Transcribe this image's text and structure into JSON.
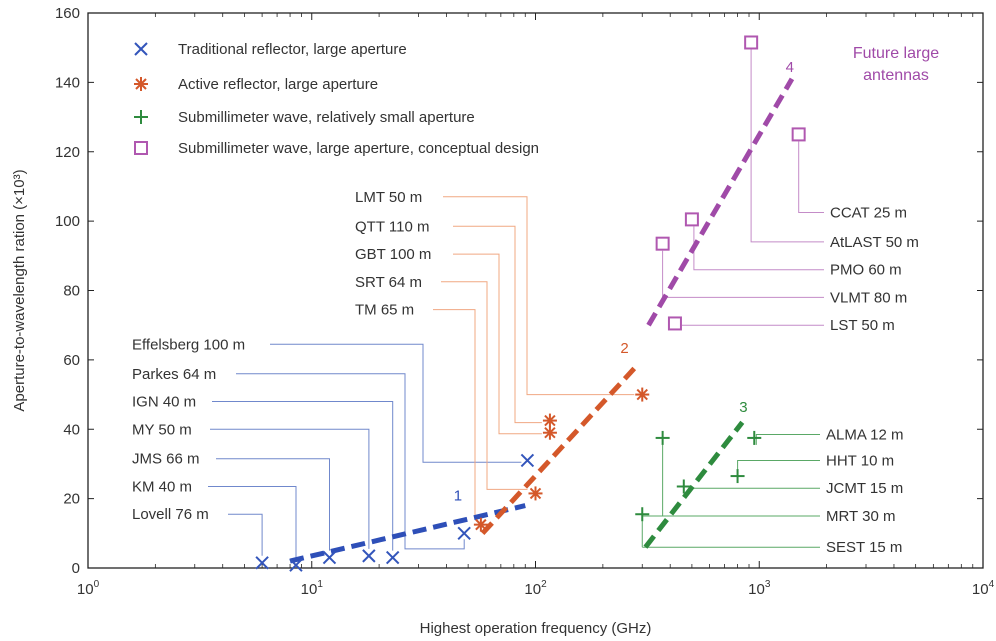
{
  "chart_data": {
    "type": "scatter",
    "xlabel": "Highest operation frequency (GHz)",
    "ylabel": "Aperture-to-wavelength ration (×10³)",
    "xscale": "log",
    "xlim": [
      1,
      10000
    ],
    "ylim": [
      0,
      160
    ],
    "grid": false,
    "legend_position": "top-left",
    "x_ticks": [
      {
        "value": 1,
        "base": "10",
        "exp": "0"
      },
      {
        "value": 10,
        "base": "10",
        "exp": "1"
      },
      {
        "value": 100,
        "base": "10",
        "exp": "2"
      },
      {
        "value": 1000,
        "base": "10",
        "exp": "3"
      },
      {
        "value": 10000,
        "base": "10",
        "exp": "4"
      }
    ],
    "y_ticks": [
      0,
      20,
      40,
      60,
      80,
      100,
      120,
      140,
      160
    ],
    "series": [
      {
        "name": "Traditional reflector, large aperture",
        "marker": "x",
        "color": "#3355bb",
        "points": [
          {
            "label": "Lovell 76 m",
            "x": 6,
            "y": 1.5,
            "label_y": 15.5
          },
          {
            "label": "KM 40 m",
            "x": 8.5,
            "y": 0.8,
            "label_y": 23.5
          },
          {
            "label": "JMS 66 m",
            "x": 12,
            "y": 3,
            "label_y": 31.5
          },
          {
            "label": "MY 50 m",
            "x": 18,
            "y": 3.5,
            "label_y": 40
          },
          {
            "label": "IGN 40 m",
            "x": 23,
            "y": 3,
            "label_y": 48
          },
          {
            "label": "Parkes 64 m",
            "x": 48,
            "y": 10,
            "label_y": 56
          },
          {
            "label": "Effelsberg 100 m",
            "x": 92,
            "y": 31,
            "label_y": 64.5
          }
        ]
      },
      {
        "name": "Active reflector, large aperture",
        "marker": "asterisk",
        "color": "#d4582a",
        "points": [
          {
            "label": "TM 65 m",
            "x": 57,
            "y": 12.5,
            "label_y": 74.5
          },
          {
            "label": "SRT 64 m",
            "x": 100,
            "y": 21.5,
            "label_y": 82.5
          },
          {
            "label": "GBT 100 m",
            "x": 116,
            "y": 39,
            "label_y": 90.5
          },
          {
            "label": "QTT 110 m",
            "x": 116,
            "y": 42.5,
            "label_y": 98.5
          },
          {
            "label": "LMT 50 m",
            "x": 300,
            "y": 50,
            "label_y": 107
          }
        ]
      },
      {
        "name": "Submillimeter wave, relatively small aperture",
        "marker": "plus",
        "color": "#2e8b3e",
        "points": [
          {
            "label": "ALMA 12 m",
            "x": 950,
            "y": 37.5,
            "label_y": 38.5
          },
          {
            "label": "HHT 10 m",
            "x": 800,
            "y": 26.5,
            "label_y": 31
          },
          {
            "label": "JCMT 15 m",
            "x": 460,
            "y": 23.5,
            "label_y": 23
          },
          {
            "label": "MRT 30 m",
            "x": 300,
            "y": 15.5,
            "label_y": 15
          },
          {
            "label": "SEST 15 m",
            "x": 370,
            "y": 37.5,
            "label_y": 6
          }
        ]
      },
      {
        "name": "Submillimeter wave, large aperture, conceptual design",
        "marker": "square",
        "color": "#b058b0",
        "points": [
          {
            "label": "CCAT 25 m",
            "x": 1500,
            "y": 125,
            "label_y": 102.5
          },
          {
            "label": "AtLAST 50 m",
            "x": 920,
            "y": 151.5,
            "label_y": 94
          },
          {
            "label": "PMO 60 m",
            "x": 500,
            "y": 100.5,
            "label_y": 86
          },
          {
            "label": "VLMT 80 m",
            "x": 370,
            "y": 93.5,
            "label_y": 78
          },
          {
            "label": "LST 50 m",
            "x": 420,
            "y": 70.5,
            "label_y": 70
          }
        ]
      }
    ],
    "trend_lines": [
      {
        "label": "1",
        "color": "#2e4fb8",
        "x": [
          8,
          90
        ],
        "y": [
          2,
          18
        ],
        "label_x": 45,
        "label_y": 19.5
      },
      {
        "label": "2",
        "color": "#d4582a",
        "x": [
          58,
          290
        ],
        "y": [
          10,
          59
        ],
        "label_x": 250,
        "label_y": 62
      },
      {
        "label": "3",
        "color": "#2e8b3e",
        "x": [
          310,
          840
        ],
        "y": [
          6,
          42
        ],
        "label_x": 850,
        "label_y": 45
      },
      {
        "label": "4",
        "color": "#a04aa8",
        "x": [
          320,
          1400
        ],
        "y": [
          70,
          141
        ],
        "label_x": 1370,
        "label_y": 143
      }
    ],
    "annotation": {
      "lines": [
        "Future large",
        "antennas"
      ],
      "color": "#a04aa8"
    }
  }
}
